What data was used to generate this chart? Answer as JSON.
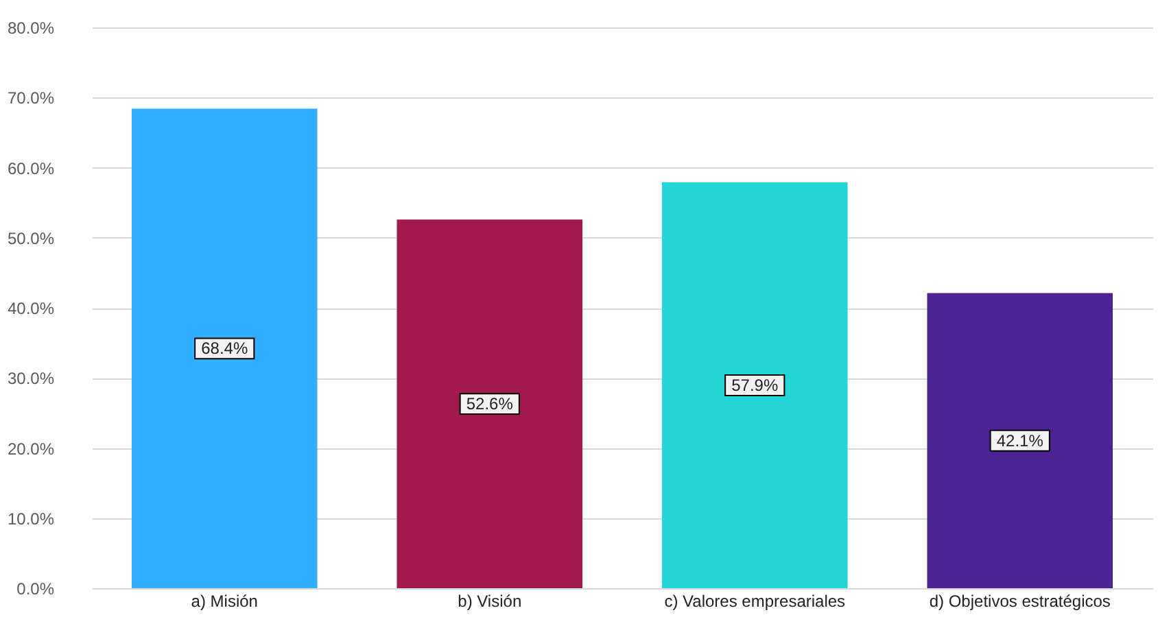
{
  "chart_data": {
    "type": "bar",
    "categories": [
      "a) Misión",
      "b) Visión",
      "c) Valores empresariales",
      "d) Objetivos estratégicos"
    ],
    "values": [
      68.4,
      52.6,
      57.9,
      42.1
    ],
    "colors": [
      "#30aeff",
      "#a0194f",
      "#24d5d5",
      "#4d2293"
    ],
    "value_labels": [
      "68.4%",
      "52.6%",
      "57.9%",
      "42.1%"
    ],
    "ylim": [
      0,
      80
    ],
    "yticks": [
      {
        "value": 0,
        "label": "0.0%"
      },
      {
        "value": 10,
        "label": "10.0%"
      },
      {
        "value": 20,
        "label": "20.0%"
      },
      {
        "value": 30,
        "label": "30.0%"
      },
      {
        "value": 40,
        "label": "40.0%"
      },
      {
        "value": 50,
        "label": "50.0%"
      },
      {
        "value": 60,
        "label": "60.0%"
      },
      {
        "value": 70,
        "label": "70.0%"
      },
      {
        "value": 80,
        "label": "80.0%"
      }
    ],
    "grid": "y"
  }
}
